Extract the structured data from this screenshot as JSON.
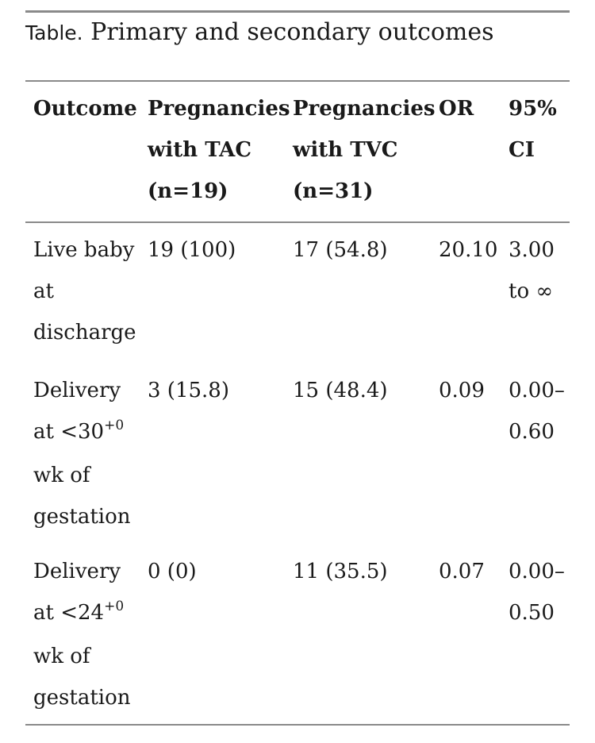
{
  "table": {
    "caption_prefix": "Table.",
    "caption_title": "Primary and secondary outcomes",
    "headers": [
      [
        "Outcome"
      ],
      [
        "Pregnancies",
        "with TAC",
        "(n=19)"
      ],
      [
        "Pregnancies",
        "with TVC",
        "(n=31)"
      ],
      [
        "OR"
      ],
      [
        "95%",
        "CI"
      ]
    ],
    "rows": [
      {
        "outcome": [
          "Live baby",
          "at",
          "discharge"
        ],
        "tac": "19 (100)",
        "tvc": "17 (54.8)",
        "or": "20.10",
        "ci": [
          "3.00",
          "to ∞"
        ]
      },
      {
        "outcome_lines": [
          "Delivery",
          "at <30",
          "wk of",
          "gestation"
        ],
        "outcome_sup": "+0",
        "tac": "3 (15.8)",
        "tvc": "15 (48.4)",
        "or": "0.09",
        "ci": [
          "0.00–",
          "0.60"
        ]
      },
      {
        "outcome_lines": [
          "Delivery",
          "at <24",
          "wk of",
          "gestation"
        ],
        "outcome_sup": "+0",
        "tac": "0 (0)",
        "tvc": "11 (35.5)",
        "or": "0.07",
        "ci": [
          "0.00–",
          "0.50"
        ]
      }
    ]
  }
}
